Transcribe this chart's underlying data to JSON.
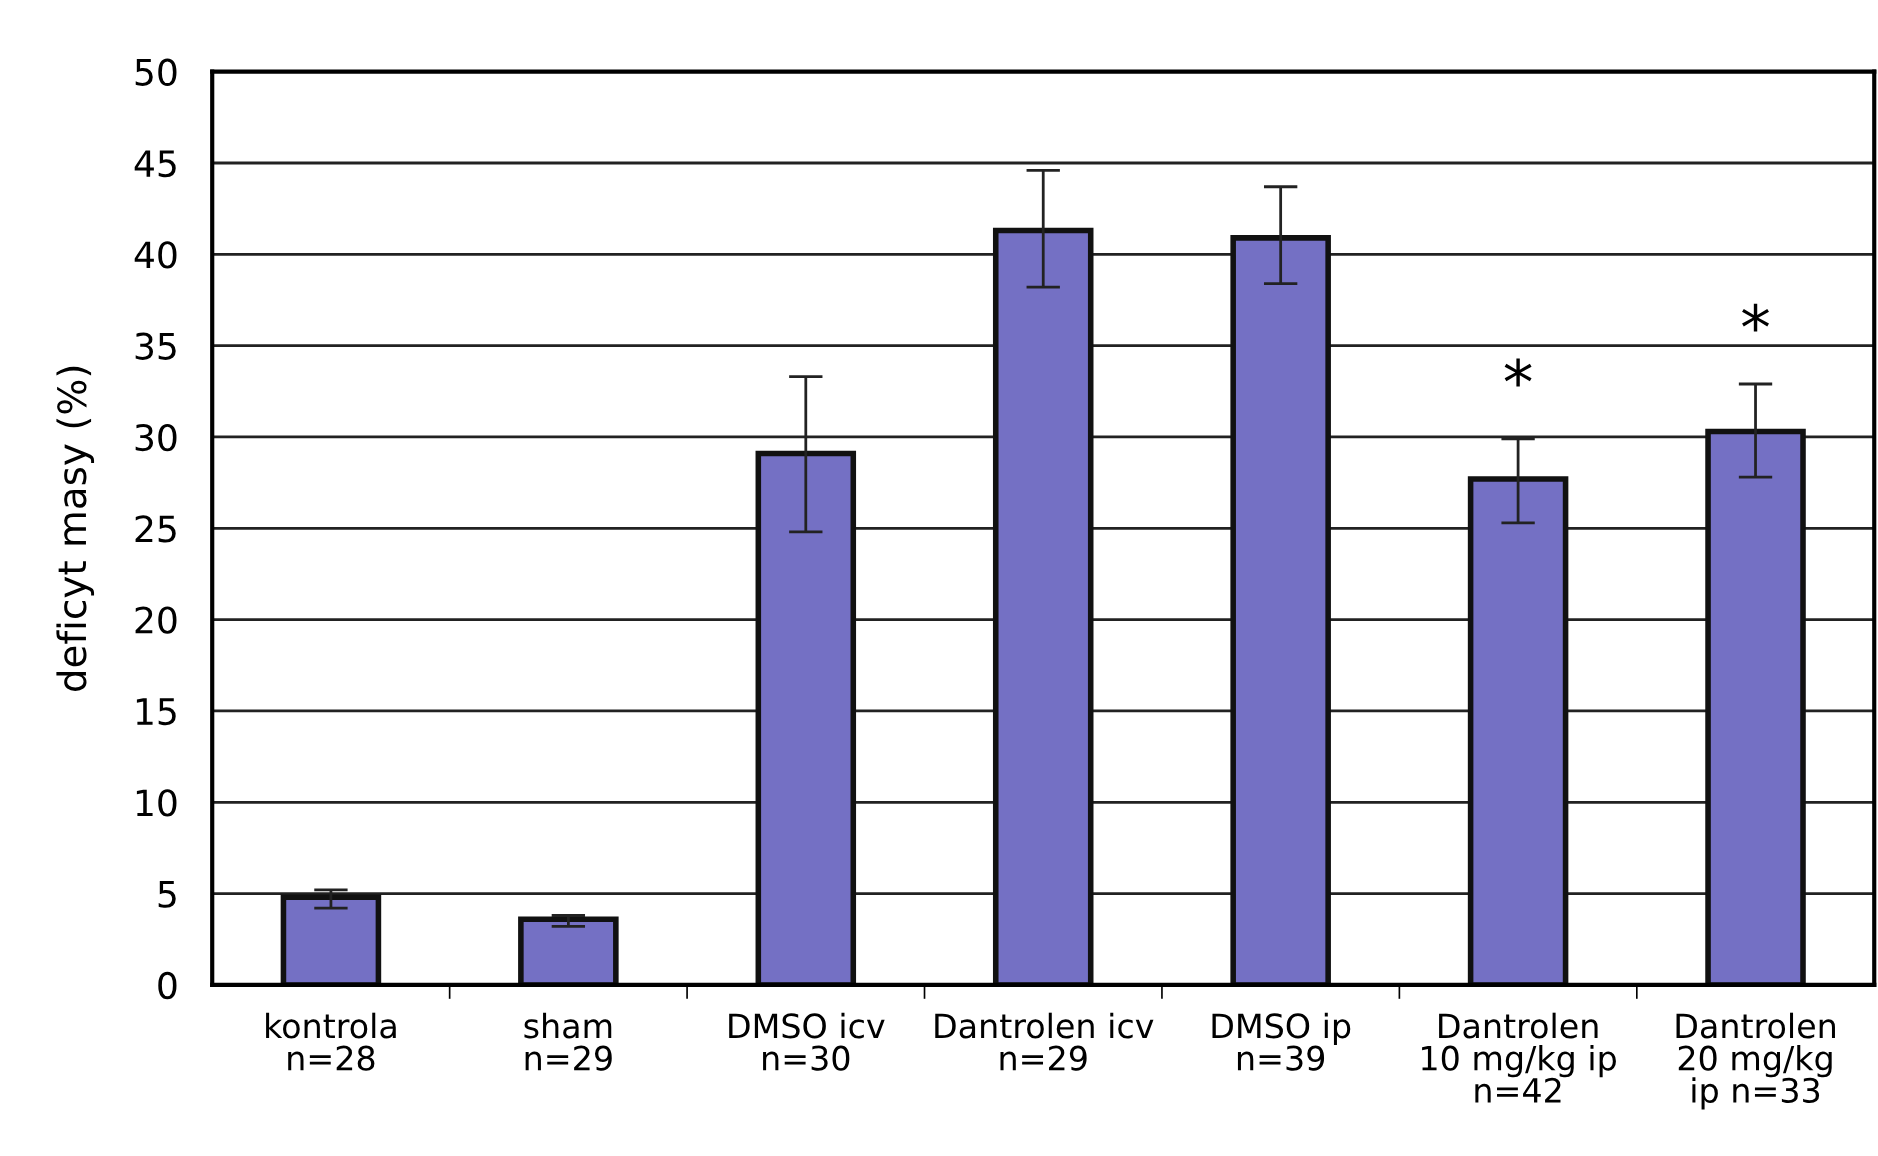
{
  "chart_data": {
    "type": "bar",
    "ylabel": "deficyt masy (%)",
    "categories": [
      "kontrola\nn=28",
      "sham\nn=29",
      "DMSO icv\nn=30",
      "Dantrolen icv\nn=29",
      "DMSO ip\nn=39",
      "Dantrolen\n10 mg/kg ip\nn=42",
      "Dantrolen\n20 mg/kg\nip n=33"
    ],
    "values": [
      4.8,
      3.6,
      29.1,
      41.3,
      40.9,
      27.7,
      30.3
    ],
    "errors": [
      [
        4.2,
        5.2
      ],
      [
        3.2,
        3.8
      ],
      [
        24.8,
        33.3
      ],
      [
        38.2,
        44.6
      ],
      [
        38.4,
        43.7
      ],
      [
        25.3,
        29.9
      ],
      [
        27.8,
        32.9
      ]
    ],
    "color": "#7470c4",
    "ylim": [
      0,
      50
    ],
    "yticks": [
      0,
      5,
      10,
      15,
      20,
      25,
      30,
      35,
      40,
      45,
      50
    ],
    "grid": "y",
    "annotations": [
      "*",
      "*"
    ]
  }
}
